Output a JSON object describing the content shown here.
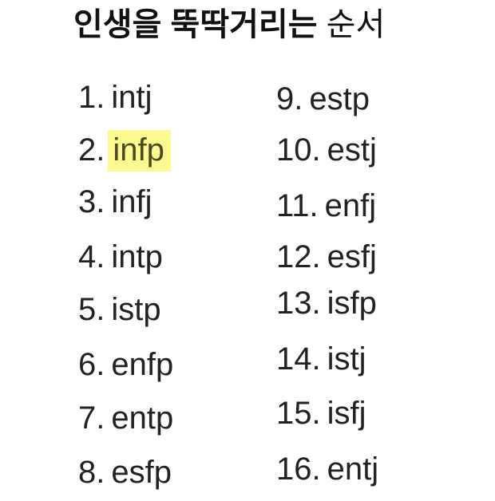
{
  "title": {
    "bold": "인생을 뚝딱거리는",
    "regular": "순서"
  },
  "highlight_color": "#fbf98f",
  "left_column": [
    {
      "num": "1.",
      "type": "intj"
    },
    {
      "num": "2.",
      "type": "infp",
      "highlighted": true
    },
    {
      "num": "3.",
      "type": "infj"
    },
    {
      "num": "4.",
      "type": "intp"
    },
    {
      "num": "5.",
      "type": "istp"
    },
    {
      "num": "6.",
      "type": "enfp"
    },
    {
      "num": "7.",
      "type": "entp"
    },
    {
      "num": "8.",
      "type": "esfp"
    }
  ],
  "right_column": [
    {
      "num": "9.",
      "type": "estp"
    },
    {
      "num": "10.",
      "type": "estj"
    },
    {
      "num": "11.",
      "type": "enfj"
    },
    {
      "num": "12.",
      "type": "esfj"
    },
    {
      "num": "13.",
      "type": "isfp"
    },
    {
      "num": "14.",
      "type": "istj"
    },
    {
      "num": "15.",
      "type": "isfj"
    },
    {
      "num": "16.",
      "type": "entj"
    }
  ]
}
